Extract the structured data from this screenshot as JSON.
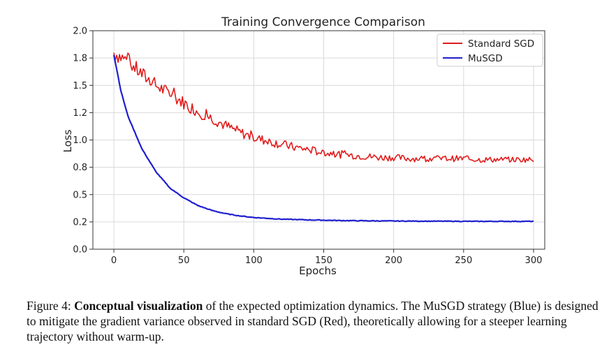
{
  "chart_data": {
    "type": "line",
    "title": "Training Convergence Comparison",
    "xlabel": "Epochs",
    "ylabel": "Loss",
    "xlim": [
      -15,
      308
    ],
    "ylim": [
      0.0,
      2.0
    ],
    "xticks": [
      "0",
      "50",
      "100",
      "150",
      "200",
      "250",
      "300"
    ],
    "xtick_values": [
      0,
      50,
      100,
      150,
      200,
      250,
      300
    ],
    "yticks": [
      "0.0",
      "0.2",
      "0.5",
      "0.8",
      "1.0",
      "1.2",
      "1.5",
      "1.8",
      "2.0"
    ],
    "ytick_values": [
      0.0,
      0.25,
      0.5,
      0.75,
      1.0,
      1.25,
      1.5,
      1.75,
      2.0
    ],
    "grid": true,
    "legend_position": "top-right",
    "series": [
      {
        "name": "Standard SGD",
        "color": "#e11b1b",
        "x": [
          0,
          10,
          20,
          30,
          40,
          50,
          60,
          70,
          80,
          90,
          100,
          110,
          120,
          130,
          140,
          150,
          160,
          170,
          180,
          190,
          200,
          210,
          220,
          230,
          240,
          250,
          260,
          270,
          280,
          290,
          300
        ],
        "values": [
          1.8,
          1.72,
          1.6,
          1.5,
          1.42,
          1.34,
          1.26,
          1.2,
          1.13,
          1.07,
          1.02,
          0.99,
          0.96,
          0.93,
          0.91,
          0.88,
          0.87,
          0.86,
          0.85,
          0.84,
          0.84,
          0.83,
          0.83,
          0.83,
          0.83,
          0.83,
          0.82,
          0.82,
          0.82,
          0.82,
          0.82
        ]
      },
      {
        "name": "MuSGD",
        "color": "#1f1fd1",
        "x": [
          0,
          5,
          10,
          20,
          30,
          40,
          50,
          60,
          70,
          80,
          90,
          100,
          120,
          140,
          160,
          180,
          200,
          220,
          240,
          260,
          280,
          300
        ],
        "values": [
          1.78,
          1.45,
          1.22,
          0.92,
          0.71,
          0.56,
          0.47,
          0.4,
          0.355,
          0.325,
          0.305,
          0.29,
          0.275,
          0.268,
          0.263,
          0.26,
          0.258,
          0.257,
          0.256,
          0.255,
          0.255,
          0.255
        ]
      }
    ]
  },
  "caption": {
    "prefix": "Figure 4: ",
    "bold": "Conceptual visualization",
    "rest": " of the expected optimization dynamics. The MuSGD strategy (Blue) is designed to mitigate the gradient variance observed in standard SGD (Red), theoretically allowing for a steeper learning trajectory without warm-up."
  },
  "colors": {
    "grid": "#d9d9d9",
    "axis": "#333333"
  }
}
